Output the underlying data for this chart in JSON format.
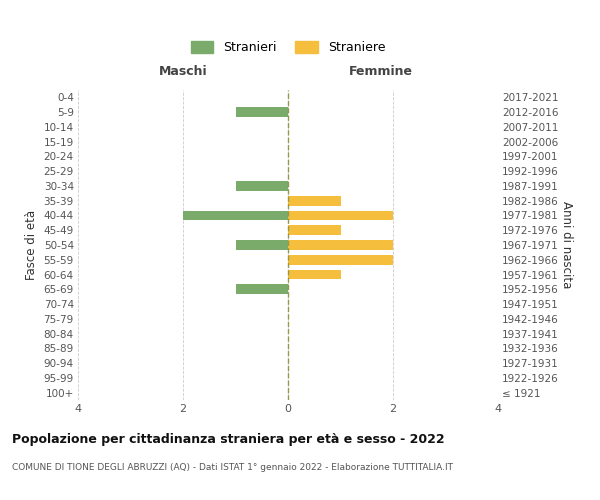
{
  "age_groups": [
    "0-4",
    "5-9",
    "10-14",
    "15-19",
    "20-24",
    "25-29",
    "30-34",
    "35-39",
    "40-44",
    "45-49",
    "50-54",
    "55-59",
    "60-64",
    "65-69",
    "70-74",
    "75-79",
    "80-84",
    "85-89",
    "90-94",
    "95-99",
    "100+"
  ],
  "birth_years": [
    "2017-2021",
    "2012-2016",
    "2007-2011",
    "2002-2006",
    "1997-2001",
    "1992-1996",
    "1987-1991",
    "1982-1986",
    "1977-1981",
    "1972-1976",
    "1967-1971",
    "1962-1966",
    "1957-1961",
    "1952-1956",
    "1947-1951",
    "1942-1946",
    "1937-1941",
    "1932-1936",
    "1927-1931",
    "1922-1926",
    "≤ 1921"
  ],
  "maschi": [
    0,
    1,
    0,
    0,
    0,
    0,
    1,
    0,
    2,
    0,
    1,
    0,
    0,
    1,
    0,
    0,
    0,
    0,
    0,
    0,
    0
  ],
  "femmine": [
    0,
    0,
    0,
    0,
    0,
    0,
    0,
    1,
    2,
    1,
    2,
    2,
    1,
    0,
    0,
    0,
    0,
    0,
    0,
    0,
    0
  ],
  "color_maschi": "#7aab6a",
  "color_femmine": "#f5be3c",
  "xlim": 4,
  "title": "Popolazione per cittadinanza straniera per età e sesso - 2022",
  "subtitle": "COMUNE DI TIONE DEGLI ABRUZZI (AQ) - Dati ISTAT 1° gennaio 2022 - Elaborazione TUTTITALIA.IT",
  "ylabel_left": "Fasce di età",
  "ylabel_right": "Anni di nascita",
  "legend_maschi": "Stranieri",
  "legend_femmine": "Straniere",
  "header_left": "Maschi",
  "header_right": "Femmine",
  "background_color": "#ffffff",
  "grid_color": "#cccccc",
  "bar_height": 0.65
}
